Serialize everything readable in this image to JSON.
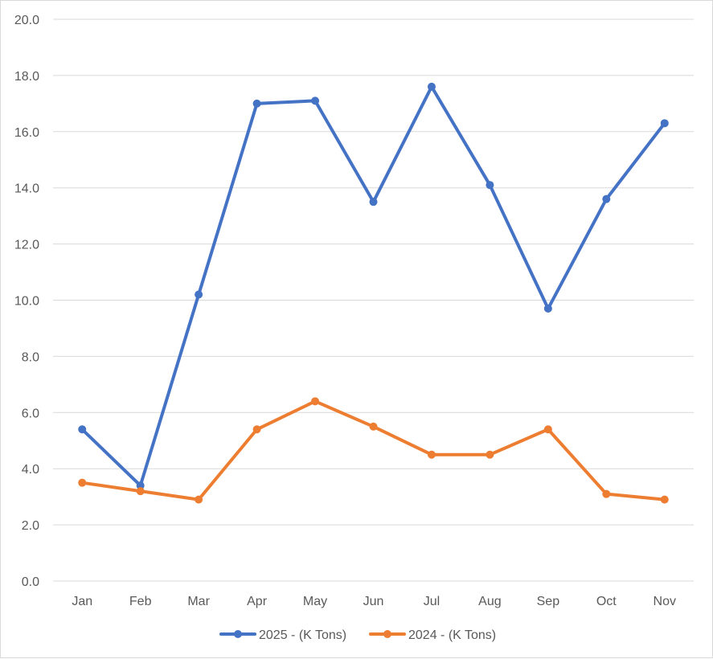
{
  "chart_data": {
    "type": "line",
    "title": "",
    "xlabel": "",
    "ylabel": "",
    "categories": [
      "Jan",
      "Feb",
      "Mar",
      "Apr",
      "May",
      "Jun",
      "Jul",
      "Aug",
      "Sep",
      "Oct",
      "Nov"
    ],
    "ylim": [
      0,
      20
    ],
    "y_ticks": [
      "0.0",
      "2.0",
      "4.0",
      "6.0",
      "8.0",
      "10.0",
      "12.0",
      "14.0",
      "16.0",
      "18.0",
      "20.0"
    ],
    "grid": "horizontal",
    "legend_position": "bottom",
    "series": [
      {
        "name": "2025 - (K Tons)",
        "color": "#4472c4",
        "values": [
          5.4,
          3.4,
          10.2,
          17.0,
          17.1,
          13.5,
          17.6,
          14.1,
          9.7,
          13.6,
          16.3
        ]
      },
      {
        "name": "2024 - (K Tons)",
        "color": "#ed7d31",
        "values": [
          3.5,
          3.2,
          2.9,
          5.4,
          6.4,
          5.5,
          4.5,
          4.5,
          5.4,
          3.1,
          2.9
        ]
      }
    ]
  }
}
